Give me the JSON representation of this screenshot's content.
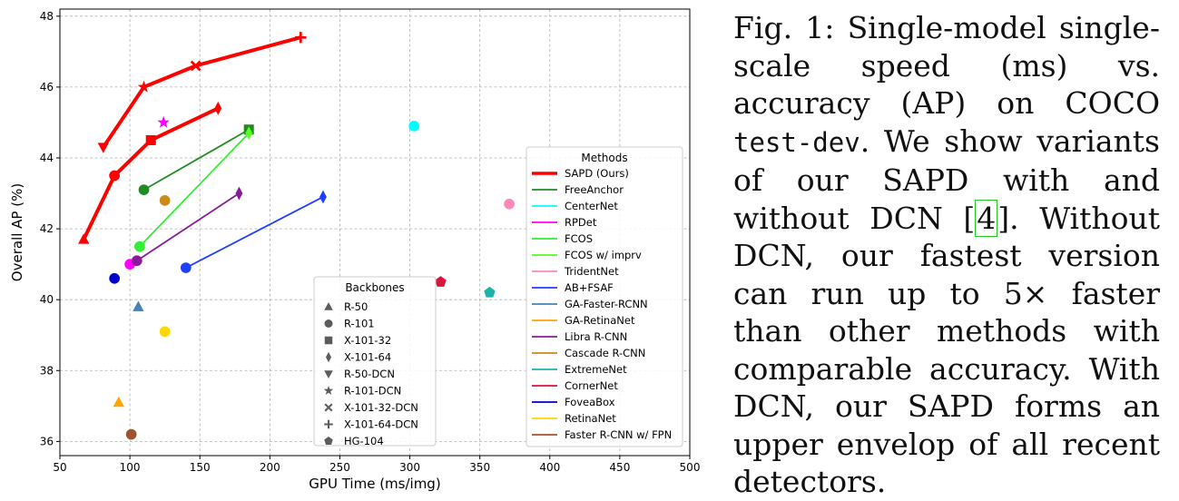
{
  "chart_data": {
    "type": "scatter",
    "xlabel": "GPU Time (ms/img)",
    "ylabel": "Overall AP (%)",
    "xlim": [
      50,
      500
    ],
    "ylim": [
      35.6,
      48.2
    ],
    "x_ticks": [
      50,
      100,
      150,
      200,
      250,
      300,
      350,
      400,
      450,
      500
    ],
    "y_ticks": [
      36,
      38,
      40,
      42,
      44,
      46,
      48
    ],
    "grid": true,
    "methods_legend_title": "Methods",
    "backbones_legend_title": "Backbones",
    "methods": [
      {
        "name": "SAPD (Ours)",
        "color": "#ff0000",
        "bold": true
      },
      {
        "name": "FreeAnchor",
        "color": "#228b22"
      },
      {
        "name": "CenterNet",
        "color": "#00ffff"
      },
      {
        "name": "RPDet",
        "color": "#ff00ff"
      },
      {
        "name": "FCOS",
        "color": "#33ee33"
      },
      {
        "name": "FCOS w/ imprv",
        "color": "#55ff22"
      },
      {
        "name": "TridentNet",
        "color": "#ff88bb"
      },
      {
        "name": "AB+FSAF",
        "color": "#1f3fff"
      },
      {
        "name": "GA-Faster-RCNN",
        "color": "#4682b4"
      },
      {
        "name": "GA-RetinaNet",
        "color": "#ffa500"
      },
      {
        "name": "Libra R-CNN",
        "color": "#8b1a9b"
      },
      {
        "name": "Cascade R-CNN",
        "color": "#cd8a18"
      },
      {
        "name": "ExtremeNet",
        "color": "#20b2aa"
      },
      {
        "name": "CornerNet",
        "color": "#dc143c"
      },
      {
        "name": "FoveaBox",
        "color": "#0000cd"
      },
      {
        "name": "RetinaNet",
        "color": "#ffd700"
      },
      {
        "name": "Faster R-CNN w/ FPN",
        "color": "#a0522d"
      }
    ],
    "backbones": [
      {
        "name": "R-50",
        "marker": "triangle-up"
      },
      {
        "name": "R-101",
        "marker": "circle"
      },
      {
        "name": "X-101-32",
        "marker": "square"
      },
      {
        "name": "X-101-64",
        "marker": "thin-diamond"
      },
      {
        "name": "R-50-DCN",
        "marker": "triangle-down"
      },
      {
        "name": "R-101-DCN",
        "marker": "star"
      },
      {
        "name": "X-101-32-DCN",
        "marker": "x"
      },
      {
        "name": "X-101-64-DCN",
        "marker": "plus"
      },
      {
        "name": "HG-104",
        "marker": "pentagon"
      }
    ],
    "lines": [
      {
        "method": "SAPD (Ours)",
        "width": 4,
        "points": [
          [
            67,
            41.7
          ],
          [
            89,
            43.5
          ],
          [
            115,
            44.5
          ],
          [
            163,
            45.4
          ]
        ]
      },
      {
        "method": "SAPD (Ours)",
        "width": 4,
        "points": [
          [
            81,
            44.3
          ],
          [
            110,
            46.0
          ],
          [
            147,
            46.6
          ],
          [
            222,
            47.4
          ]
        ]
      },
      {
        "method": "FreeAnchor",
        "width": 1.8,
        "points": [
          [
            110,
            43.1
          ],
          [
            185,
            44.8
          ]
        ]
      },
      {
        "method": "FCOS",
        "width": 1.8,
        "points": [
          [
            107,
            41.5
          ],
          [
            185,
            44.7
          ]
        ]
      },
      {
        "method": "Libra R-CNN",
        "width": 1.8,
        "points": [
          [
            105,
            41.1
          ],
          [
            178,
            43.0
          ]
        ]
      },
      {
        "method": "AB+FSAF",
        "width": 1.8,
        "points": [
          [
            140,
            40.9
          ],
          [
            238,
            42.9
          ]
        ]
      }
    ],
    "points": [
      {
        "method": "SAPD (Ours)",
        "backbone": "R-50",
        "x": 67,
        "y": 41.7
      },
      {
        "method": "SAPD (Ours)",
        "backbone": "R-101",
        "x": 89,
        "y": 43.5
      },
      {
        "method": "SAPD (Ours)",
        "backbone": "X-101-32",
        "x": 115,
        "y": 44.5
      },
      {
        "method": "SAPD (Ours)",
        "backbone": "X-101-64",
        "x": 163,
        "y": 45.4
      },
      {
        "method": "SAPD (Ours)",
        "backbone": "R-50-DCN",
        "x": 81,
        "y": 44.3
      },
      {
        "method": "SAPD (Ours)",
        "backbone": "R-101-DCN",
        "x": 110,
        "y": 46.0
      },
      {
        "method": "SAPD (Ours)",
        "backbone": "X-101-32-DCN",
        "x": 147,
        "y": 46.6
      },
      {
        "method": "SAPD (Ours)",
        "backbone": "X-101-64-DCN",
        "x": 222,
        "y": 47.4
      },
      {
        "method": "FreeAnchor",
        "backbone": "R-101",
        "x": 110,
        "y": 43.1
      },
      {
        "method": "FreeAnchor",
        "backbone": "X-101-32",
        "x": 185,
        "y": 44.8
      },
      {
        "method": "FCOS w/ imprv",
        "backbone": "X-101-64",
        "x": 185,
        "y": 44.7
      },
      {
        "method": "FCOS",
        "backbone": "R-101",
        "x": 107,
        "y": 41.5
      },
      {
        "method": "CenterNet",
        "backbone": "R-101",
        "x": 303,
        "y": 44.9
      },
      {
        "method": "RPDet",
        "backbone": "R-101",
        "x": 100,
        "y": 41.0
      },
      {
        "method": "RPDet",
        "backbone": "R-101-DCN",
        "x": 124,
        "y": 45.0
      },
      {
        "method": "TridentNet",
        "backbone": "R-101",
        "x": 371,
        "y": 42.7
      },
      {
        "method": "Libra R-CNN",
        "backbone": "R-101",
        "x": 105,
        "y": 41.1
      },
      {
        "method": "Libra R-CNN",
        "backbone": "X-101-64",
        "x": 178,
        "y": 43.0
      },
      {
        "method": "AB+FSAF",
        "backbone": "R-101",
        "x": 140,
        "y": 40.9
      },
      {
        "method": "AB+FSAF",
        "backbone": "X-101-64",
        "x": 238,
        "y": 42.9
      },
      {
        "method": "GA-Faster-RCNN",
        "backbone": "R-50",
        "x": 106,
        "y": 39.8
      },
      {
        "method": "Cascade R-CNN",
        "backbone": "R-101",
        "x": 125,
        "y": 42.8
      },
      {
        "method": "ExtremeNet",
        "backbone": "HG-104",
        "x": 357,
        "y": 40.2
      },
      {
        "method": "CornerNet",
        "backbone": "HG-104",
        "x": 322,
        "y": 40.5
      },
      {
        "method": "FoveaBox",
        "backbone": "R-101",
        "x": 89,
        "y": 40.6
      },
      {
        "method": "RetinaNet",
        "backbone": "R-101",
        "x": 125,
        "y": 39.1
      },
      {
        "method": "GA-RetinaNet",
        "backbone": "R-50",
        "x": 92,
        "y": 37.1
      },
      {
        "method": "Faster R-CNN w/ FPN",
        "backbone": "R-101",
        "x": 101,
        "y": 36.2
      }
    ]
  },
  "caption": {
    "label": "Fig. 1:",
    "text_1": " Single-model single-scale speed (ms) vs. accuracy (AP) on COCO ",
    "code": "test-dev",
    "text_2": ". We show variants of our SAPD with and without DCN [",
    "ref": "4",
    "text_3": "]. Without DCN, our fastest version can run up to 5× faster than other methods with comparable accuracy. With DCN, our SAPD forms an upper envelop of all recent detectors."
  }
}
